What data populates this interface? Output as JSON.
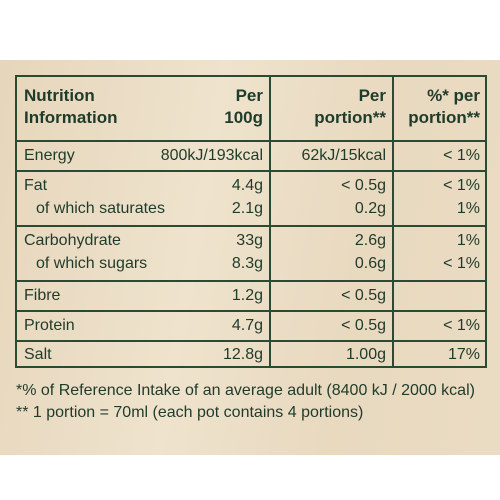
{
  "header": {
    "nutrient": [
      "Nutrition",
      "Information"
    ],
    "per_100g": [
      "Per",
      "100g"
    ],
    "per_portion": [
      "Per",
      "portion**"
    ],
    "ri": [
      "%* per",
      "portion**"
    ]
  },
  "groups": [
    {
      "lines": [
        {
          "name": "Energy",
          "per_100g": "800kJ/193kcal",
          "per_portion": "62kJ/15kcal",
          "ri": "< 1%"
        }
      ]
    },
    {
      "lines": [
        {
          "name": "Fat",
          "per_100g": "4.4g",
          "per_portion": "< 0.5g",
          "ri": "< 1%"
        },
        {
          "name": "of which saturates",
          "per_100g": "2.1g",
          "per_portion": "0.2g",
          "ri": "1%"
        }
      ]
    },
    {
      "lines": [
        {
          "name": "Carbohydrate",
          "per_100g": "33g",
          "per_portion": "2.6g",
          "ri": "1%"
        },
        {
          "name": "of which sugars",
          "per_100g": "8.3g",
          "per_portion": "0.6g",
          "ri": "< 1%"
        }
      ]
    },
    {
      "lines": [
        {
          "name": "Fibre",
          "per_100g": "1.2g",
          "per_portion": "< 0.5g"
        }
      ]
    },
    {
      "lines": [
        {
          "name": "Protein",
          "per_100g": "4.7g",
          "per_portion": "< 0.5g",
          "ri": "< 1%"
        }
      ]
    },
    {
      "lines": [
        {
          "name": "Salt",
          "per_100g": "12.8g",
          "per_portion": "1.00g",
          "ri": "17%"
        }
      ]
    }
  ],
  "footnotes": [
    "*% of Reference Intake of an average adult (8400 kJ / 2000 kcal)",
    "** 1 portion = 70ml (each pot contains 4 portions)"
  ]
}
